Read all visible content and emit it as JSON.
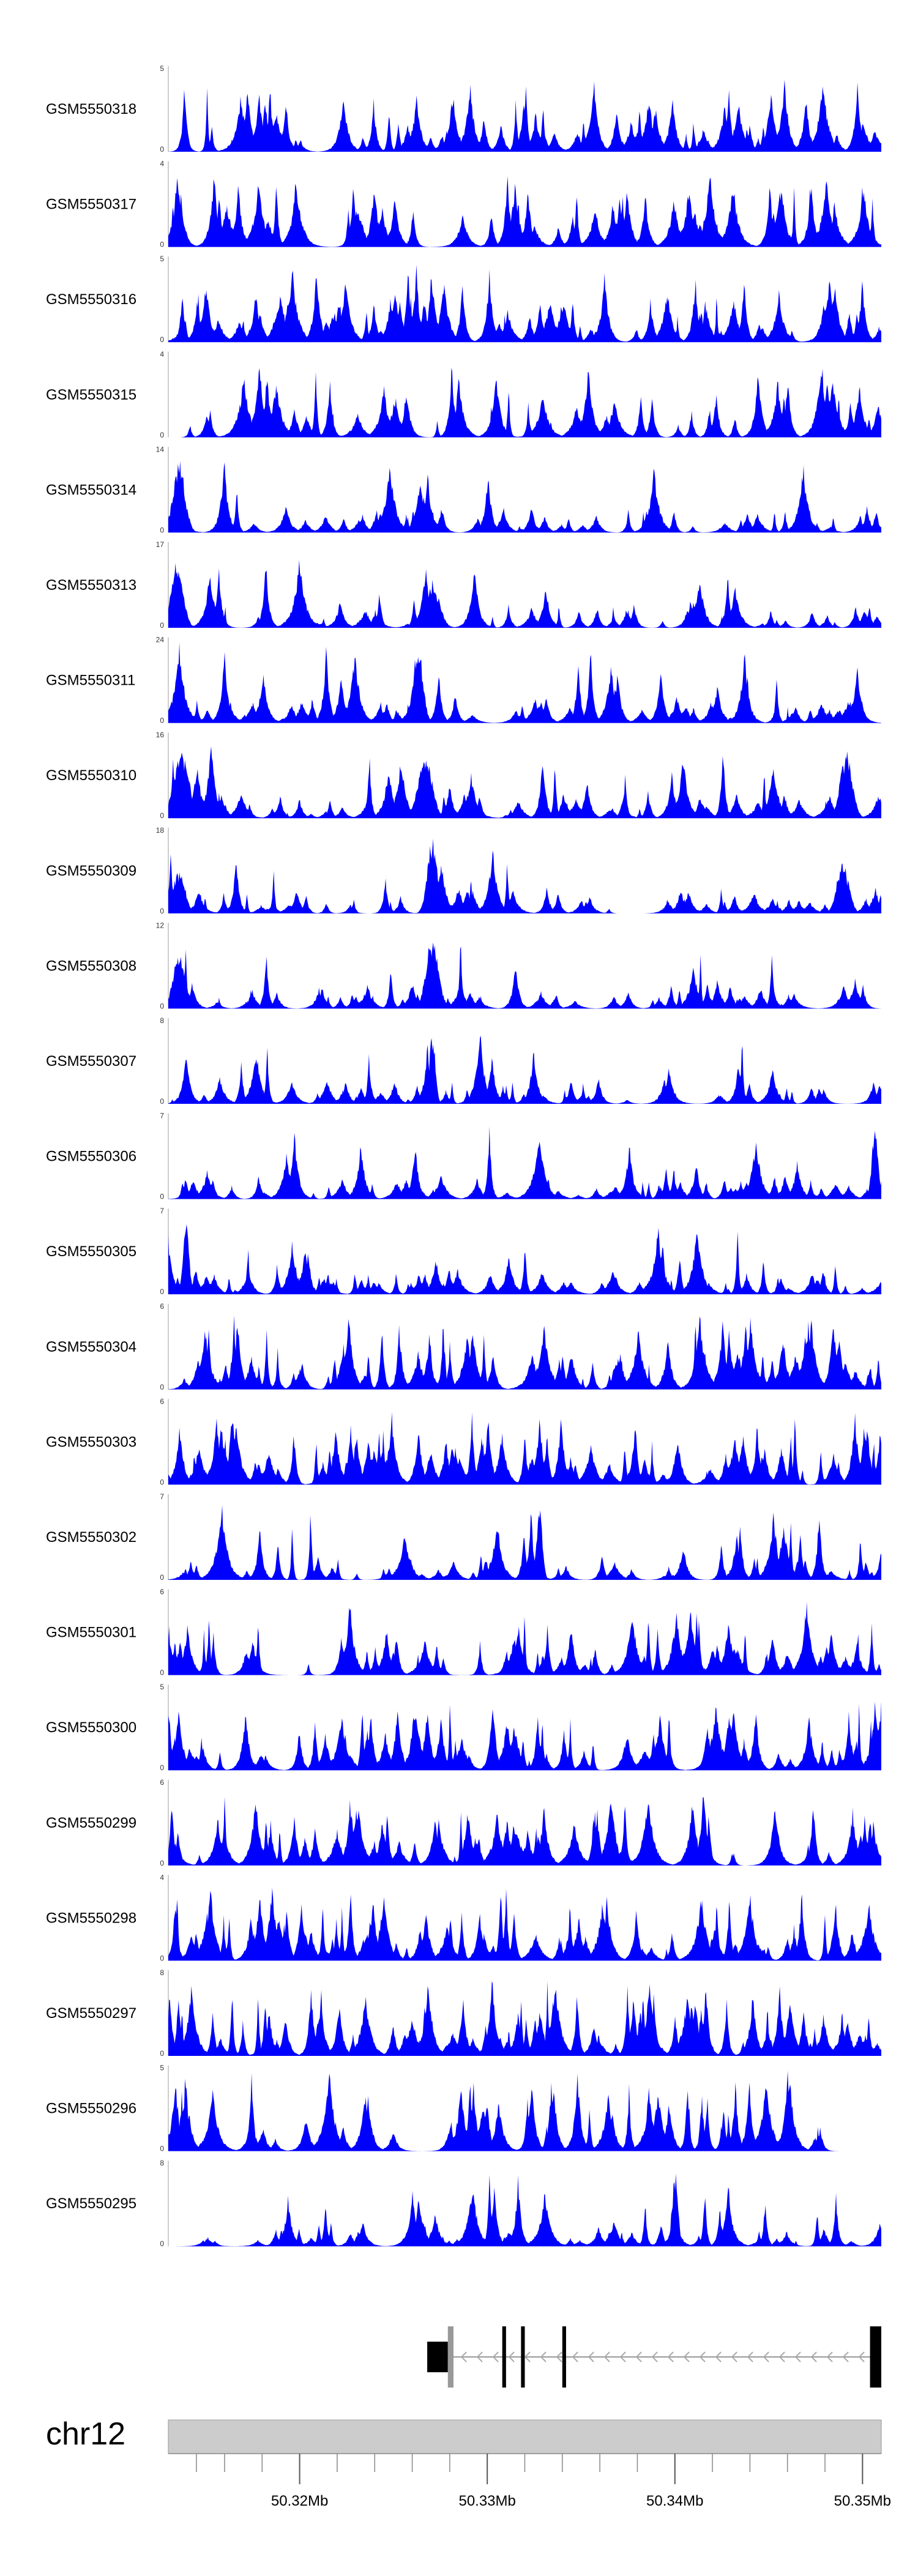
{
  "chart_data": {
    "type": "area",
    "chromosome": "chr12",
    "x_range": [
      50313000,
      50351000
    ],
    "x_ticks": [
      {
        "label": "50.32Mb",
        "value": 50320000
      },
      {
        "label": "50.33Mb",
        "value": 50330000
      },
      {
        "label": "50.34Mb",
        "value": 50340000
      },
      {
        "label": "50.35Mb",
        "value": 50350000
      }
    ],
    "minor_ticks": [
      50314500,
      50316000,
      50318000,
      50322000,
      50324000,
      50326000,
      50328000,
      50332000,
      50334000,
      50336000,
      50338000,
      50342000,
      50344000,
      50346000,
      50348000
    ],
    "fill_color": "#0000ff",
    "series": [
      {
        "name": "GSM5550318",
        "ymax": "5",
        "ymin": "0",
        "max": 5,
        "seed": 318,
        "peaks": []
      },
      {
        "name": "GSM5550317",
        "ymax": "4",
        "ymin": "0",
        "max": 4,
        "seed": 317,
        "peaks": []
      },
      {
        "name": "GSM5550316",
        "ymax": "5",
        "ymin": "0",
        "max": 5,
        "seed": 316,
        "peaks": []
      },
      {
        "name": "GSM5550315",
        "ymax": "4",
        "ymin": "0",
        "max": 4,
        "seed": 315,
        "peaks": []
      },
      {
        "name": "GSM5550314",
        "ymax": "14",
        "ymin": "0",
        "max": 14,
        "seed": 314,
        "peaks": [
          [
            0.015,
            0.9,
            0.012
          ],
          [
            0.36,
            0.45,
            0.015
          ]
        ]
      },
      {
        "name": "GSM5550313",
        "ymax": "17",
        "ymin": "0",
        "max": 17,
        "seed": 313,
        "peaks": [
          [
            0.012,
            0.85,
            0.012
          ],
          [
            0.37,
            0.6,
            0.014
          ]
        ]
      },
      {
        "name": "GSM5550311",
        "ymax": "24",
        "ymin": "0",
        "max": 24,
        "seed": 311,
        "peaks": [
          [
            0.35,
            0.95,
            0.01
          ],
          [
            0.955,
            0.3,
            0.01
          ],
          [
            0.02,
            0.25,
            0.01
          ]
        ]
      },
      {
        "name": "GSM5550310",
        "ymax": "16",
        "ymin": "0",
        "max": 16,
        "seed": 310,
        "peaks": [
          [
            0.018,
            0.9,
            0.015
          ],
          [
            0.36,
            0.8,
            0.014
          ],
          [
            0.95,
            0.85,
            0.012
          ]
        ]
      },
      {
        "name": "GSM5550309",
        "ymax": "18",
        "ymin": "0",
        "max": 18,
        "seed": 309,
        "peaks": [
          [
            0.015,
            0.55,
            0.012
          ],
          [
            0.37,
            0.95,
            0.01
          ],
          [
            0.945,
            0.65,
            0.012
          ]
        ]
      },
      {
        "name": "GSM5550308",
        "ymax": "12",
        "ymin": "0",
        "max": 12,
        "seed": 308,
        "peaks": [
          [
            0.015,
            0.7,
            0.012
          ],
          [
            0.37,
            0.95,
            0.012
          ]
        ]
      },
      {
        "name": "GSM5550307",
        "ymax": "8",
        "ymin": "0",
        "max": 8,
        "seed": 307,
        "peaks": [
          [
            0.37,
            0.9,
            0.006
          ]
        ]
      },
      {
        "name": "GSM5550306",
        "ymax": "7",
        "ymin": "0",
        "max": 7,
        "seed": 306,
        "peaks": [
          [
            0.99,
            0.95,
            0.006
          ]
        ]
      },
      {
        "name": "GSM5550305",
        "ymax": "7",
        "ymin": "0",
        "max": 7,
        "seed": 305,
        "peaks": [
          [
            0.025,
            0.9,
            0.006
          ]
        ]
      },
      {
        "name": "GSM5550304",
        "ymax": "6",
        "ymin": "0",
        "max": 6,
        "seed": 304,
        "peaks": []
      },
      {
        "name": "GSM5550303",
        "ymax": "6",
        "ymin": "0",
        "max": 6,
        "seed": 303,
        "peaks": []
      },
      {
        "name": "GSM5550302",
        "ymax": "7",
        "ymin": "0",
        "max": 7,
        "seed": 302,
        "peaks": [
          [
            0.52,
            0.95,
            0.006
          ]
        ]
      },
      {
        "name": "GSM5550301",
        "ymax": "6",
        "ymin": "0",
        "max": 6,
        "seed": 301,
        "peaks": []
      },
      {
        "name": "GSM5550300",
        "ymax": "5",
        "ymin": "0",
        "max": 5,
        "seed": 300,
        "peaks": []
      },
      {
        "name": "GSM5550299",
        "ymax": "6",
        "ymin": "0",
        "max": 6,
        "seed": 299,
        "peaks": []
      },
      {
        "name": "GSM5550298",
        "ymax": "4",
        "ymin": "0",
        "max": 4,
        "seed": 298,
        "peaks": []
      },
      {
        "name": "GSM5550297",
        "ymax": "8",
        "ymin": "0",
        "max": 8,
        "seed": 297,
        "peaks": []
      },
      {
        "name": "GSM5550296",
        "ymax": "5",
        "ymin": "0",
        "max": 5,
        "seed": 296,
        "peaks": []
      },
      {
        "name": "GSM5550295",
        "ymax": "8",
        "ymin": "0",
        "max": 8,
        "seed": 295,
        "peaks": [
          [
            0.71,
            0.95,
            0.006
          ]
        ]
      }
    ],
    "gene_model": {
      "strand": "-",
      "start": 50326800,
      "end": 50351000,
      "exons": [
        [
          50326800,
          50327900
        ],
        [
          50327900,
          50328200
        ],
        [
          50330800,
          50331000
        ],
        [
          50331800,
          50332000
        ],
        [
          50334000,
          50334200
        ],
        [
          50350400,
          50351000
        ]
      ]
    }
  }
}
